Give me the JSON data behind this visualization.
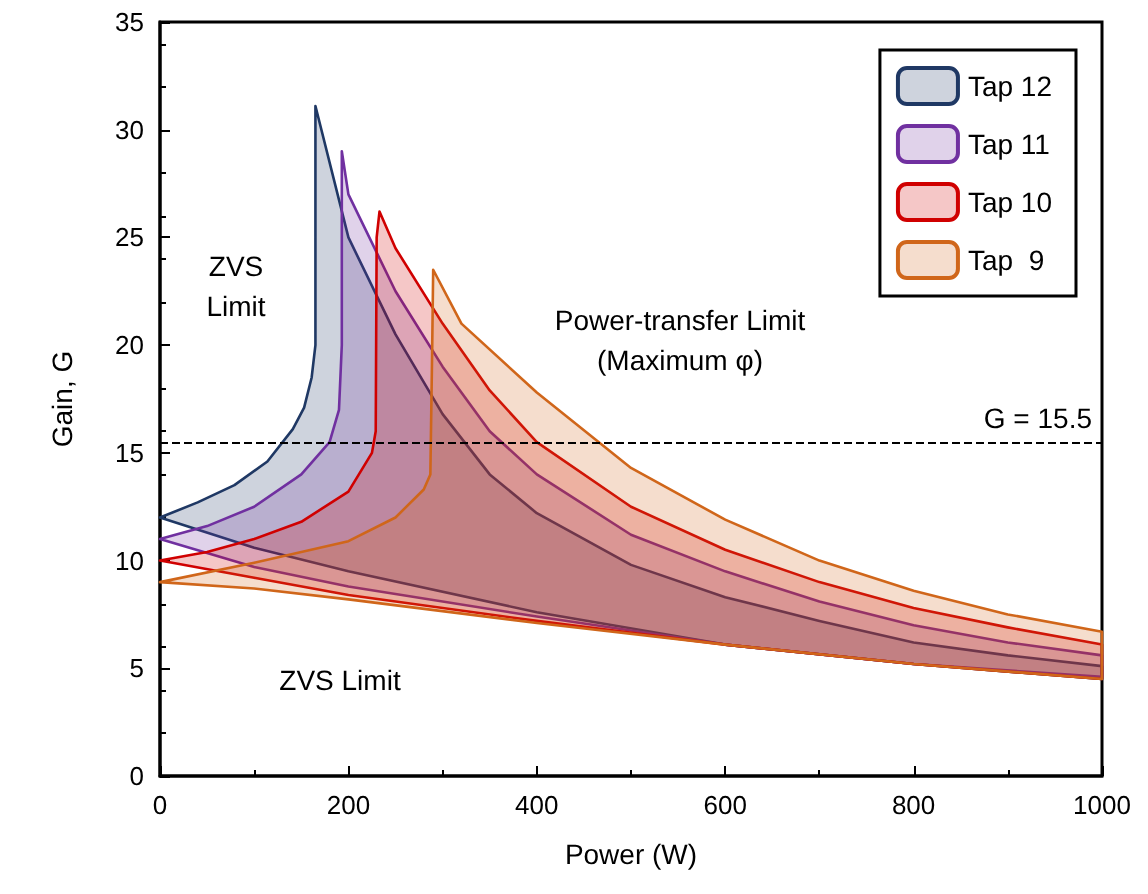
{
  "chart_data": {
    "type": "area",
    "xlabel": "Power (W)",
    "ylabel": "Gain, G",
    "xlim": [
      0,
      1000
    ],
    "xticks": [
      0,
      200,
      400,
      600,
      800,
      1000
    ],
    "ylim": [
      0,
      35
    ],
    "yticks": [
      0,
      5,
      10,
      15,
      20,
      25,
      30,
      35
    ],
    "grid": false,
    "legend": "top right",
    "series": [
      {
        "name": "Tap 12",
        "color": "#1f3864",
        "x": [
          0,
          40,
          79,
          114,
          141,
          153,
          161,
          165,
          165,
          200,
          250,
          300,
          350,
          400,
          500,
          600,
          700,
          800,
          900,
          1000,
          1000,
          800,
          600,
          400,
          200,
          100,
          0
        ],
        "values": [
          12,
          12.7,
          13.5,
          14.6,
          16.1,
          17.1,
          18.5,
          20,
          31.1,
          25,
          20.5,
          16.8,
          14,
          12.2,
          9.8,
          8.3,
          7.2,
          6.2,
          5.6,
          5.1,
          4.5,
          5.2,
          6.1,
          7.6,
          9.5,
          10.6,
          12
        ]
      },
      {
        "name": "Tap 11",
        "color": "#7030a0",
        "x": [
          0,
          50,
          100,
          150,
          180,
          190,
          193,
          193,
          200,
          250,
          300,
          350,
          400,
          500,
          600,
          700,
          800,
          900,
          1000,
          1000,
          800,
          600,
          400,
          200,
          100,
          0
        ],
        "values": [
          11,
          11.6,
          12.5,
          14,
          15.5,
          17,
          20,
          29,
          27,
          22.5,
          19,
          16,
          14,
          11.2,
          9.5,
          8.1,
          7,
          6.2,
          5.6,
          4.6,
          5.2,
          6.1,
          7.4,
          8.8,
          9.7,
          11
        ]
      },
      {
        "name": "Tap 10",
        "color": "#d00000",
        "x": [
          0,
          50,
          100,
          150,
          200,
          225,
          229,
          230,
          233,
          250,
          300,
          350,
          400,
          500,
          600,
          700,
          800,
          900,
          1000,
          1000,
          800,
          600,
          400,
          200,
          100,
          0
        ],
        "values": [
          10,
          10.4,
          11,
          11.8,
          13.2,
          15,
          16,
          25,
          26.2,
          24.5,
          21,
          17.9,
          15.5,
          12.5,
          10.5,
          9,
          7.8,
          6.9,
          6.1,
          4.5,
          5.2,
          6.1,
          7.2,
          8.4,
          9.2,
          10
        ]
      },
      {
        "name": "Tap  9",
        "color": "#d0661a",
        "x": [
          0,
          100,
          200,
          250,
          280,
          287,
          289,
          290,
          320,
          400,
          500,
          600,
          700,
          800,
          900,
          1000,
          1000,
          800,
          600,
          400,
          200,
          100,
          0
        ],
        "values": [
          9,
          9.9,
          10.9,
          12,
          13.3,
          14,
          20,
          23.5,
          21,
          17.8,
          14.3,
          11.9,
          10,
          8.6,
          7.5,
          6.7,
          4.5,
          5.2,
          6.1,
          7.1,
          8.2,
          8.7,
          9
        ]
      }
    ],
    "ref_lines": [
      {
        "axis": "y",
        "value": 15.5,
        "label": "G = 15.5",
        "line_style": "dashed",
        "color": "#000000"
      }
    ],
    "annotations": [
      "ZVS\nLimit",
      "Power-transfer Limit\n(Maximum φ)",
      "ZVS Limit"
    ]
  }
}
